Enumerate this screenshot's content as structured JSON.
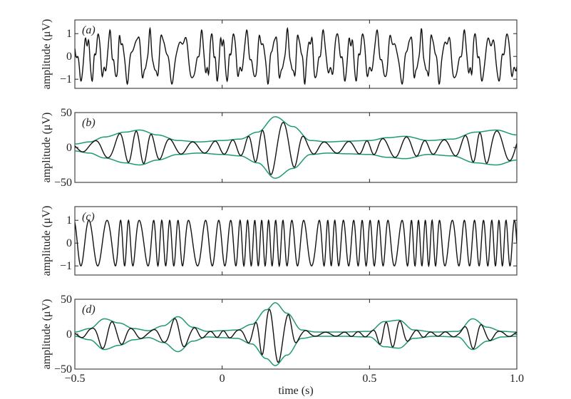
{
  "chart_data": {
    "type": "line",
    "xlabel": "time (s)",
    "xlim": [
      -0.5,
      1.0
    ],
    "xticks": [
      -0.5,
      0,
      0.5,
      1.0
    ],
    "xtick_labels": [
      "−0.5",
      "0",
      "0.5",
      "1.0"
    ],
    "grid": false,
    "colors": {
      "signal": "#111111",
      "envelope": "#1e9b6b"
    },
    "panels": [
      {
        "label": "(a)",
        "ylabel": "amplitude (μV)",
        "ylim": [
          -1.4,
          1.6
        ],
        "yticks": [
          1,
          0,
          -1
        ],
        "ytick_labels": [
          "1",
          "0",
          "−1"
        ],
        "series": [
          {
            "role": "signal",
            "kind": "unit-amplitude phase signal",
            "values_note": ""
          }
        ]
      },
      {
        "label": "(b)",
        "ylabel": "amplitude (μV)",
        "ylim": [
          -50,
          50
        ],
        "yticks": [
          50,
          0,
          -50
        ],
        "ytick_labels": [
          "50",
          "0",
          "−50"
        ],
        "series": [
          {
            "role": "signal"
          },
          {
            "role": "upper-envelope"
          },
          {
            "role": "lower-envelope"
          }
        ],
        "envelope_points": {
          "x": [
            -0.5,
            -0.45,
            -0.4,
            -0.33,
            -0.28,
            -0.22,
            -0.15,
            -0.08,
            0.0,
            0.06,
            0.12,
            0.18,
            0.24,
            0.3,
            0.36,
            0.42,
            0.5,
            0.56,
            0.62,
            0.7,
            0.78,
            0.86,
            0.93,
            1.0
          ],
          "upper": [
            5,
            8,
            15,
            22,
            25,
            18,
            10,
            8,
            10,
            12,
            22,
            44,
            30,
            10,
            8,
            9,
            10,
            14,
            16,
            10,
            12,
            22,
            25,
            18
          ]
        }
      },
      {
        "label": "(c)",
        "ylabel": "amplitude (μV)",
        "ylim": [
          -1.4,
          1.6
        ],
        "yticks": [
          1,
          0,
          -1
        ],
        "ytick_labels": [
          "1",
          "0",
          "−1"
        ],
        "series": [
          {
            "role": "signal"
          }
        ]
      },
      {
        "label": "(d)",
        "ylabel": "amplitude (μV)",
        "ylim": [
          -50,
          50
        ],
        "yticks": [
          50,
          0,
          -50
        ],
        "ytick_labels": [
          "50",
          "0",
          "−50"
        ],
        "series": [
          {
            "role": "signal"
          },
          {
            "role": "upper-envelope"
          },
          {
            "role": "lower-envelope"
          }
        ],
        "envelope_points": {
          "x": [
            -0.5,
            -0.45,
            -0.4,
            -0.35,
            -0.3,
            -0.25,
            -0.2,
            -0.15,
            -0.1,
            -0.05,
            0.0,
            0.05,
            0.1,
            0.15,
            0.18,
            0.22,
            0.27,
            0.32,
            0.4,
            0.5,
            0.55,
            0.6,
            0.65,
            0.72,
            0.8,
            0.85,
            0.9,
            0.95,
            1.0
          ],
          "upper": [
            3,
            8,
            22,
            16,
            8,
            5,
            12,
            25,
            10,
            4,
            5,
            6,
            14,
            35,
            45,
            30,
            6,
            3,
            3,
            4,
            18,
            20,
            6,
            3,
            4,
            22,
            10,
            4,
            3
          ]
        }
      }
    ]
  }
}
